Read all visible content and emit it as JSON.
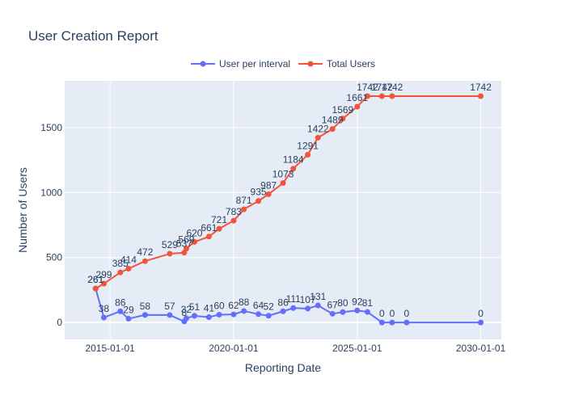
{
  "chart_data": {
    "type": "line",
    "title": "User Creation Report",
    "xlabel": "Reporting Date",
    "ylabel": "Number of Users",
    "x_type": "date",
    "xlim": [
      "2013-03-01",
      "2030-11-01"
    ],
    "ylim": [
      -130,
      1860
    ],
    "x_ticks": [
      "2015-01-01",
      "2020-01-01",
      "2025-01-01",
      "2030-01-01"
    ],
    "y_ticks": [
      0,
      500,
      1000,
      1500
    ],
    "legend_position": "top-center",
    "grid": true,
    "colors": {
      "plot_bg": "#E5ECF6",
      "grid": "#FFFFFF",
      "interval": "#636EFA",
      "total": "#EF553B"
    },
    "dates": [
      "2014-06-01",
      "2014-10-01",
      "2015-06-01",
      "2015-10-01",
      "2016-06-01",
      "2017-06-01",
      "2018-01-01",
      "2018-02-01",
      "2018-06-01",
      "2019-01-01",
      "2019-06-01",
      "2020-01-01",
      "2020-06-01",
      "2021-01-01",
      "2021-06-01",
      "2022-01-01",
      "2022-06-01",
      "2023-01-01",
      "2023-06-01",
      "2024-01-01",
      "2024-06-01",
      "2025-01-01",
      "2025-06-01",
      "2026-01-01",
      "2026-06-01",
      "2027-01-01",
      "2027-06-01",
      "2028-01-01",
      "2029-01-01",
      "2030-01-01"
    ],
    "series": [
      {
        "name": "User per interval",
        "values": [
          261,
          38,
          86,
          29,
          58,
          57,
          8,
          32,
          51,
          41,
          60,
          62,
          88,
          64,
          52,
          86,
          111,
          107,
          131,
          67,
          80,
          92,
          81,
          0,
          0,
          0,
          null,
          null,
          null,
          0
        ]
      },
      {
        "name": "Total Users",
        "values": [
          261,
          299,
          385,
          414,
          472,
          529,
          537,
          569,
          620,
          661,
          721,
          783,
          871,
          935,
          987,
          1073,
          1184,
          1291,
          1422,
          1489,
          1569,
          1661,
          1742,
          1742,
          1742,
          null,
          null,
          null,
          null,
          1742
        ]
      }
    ],
    "point_labels": [
      [
        "261",
        "38",
        "86",
        "29",
        "58",
        "57",
        "8",
        "32",
        "51",
        "41",
        "60",
        "62",
        "88",
        "64",
        "52",
        "86",
        "111",
        "107",
        "131",
        "67",
        "80",
        "92",
        "81",
        "0",
        "0",
        "0",
        "",
        "",
        "",
        "0"
      ],
      [
        "261",
        "299",
        "385",
        "414",
        "472",
        "529",
        "537",
        "569",
        "620",
        "661",
        "721",
        "783",
        "871",
        "935",
        "987",
        "1073",
        "1184",
        "1291",
        "1422",
        "1489",
        "1569",
        "1661",
        "1742",
        "1742",
        "1742",
        "",
        "",
        "",
        "",
        "1742"
      ]
    ]
  }
}
